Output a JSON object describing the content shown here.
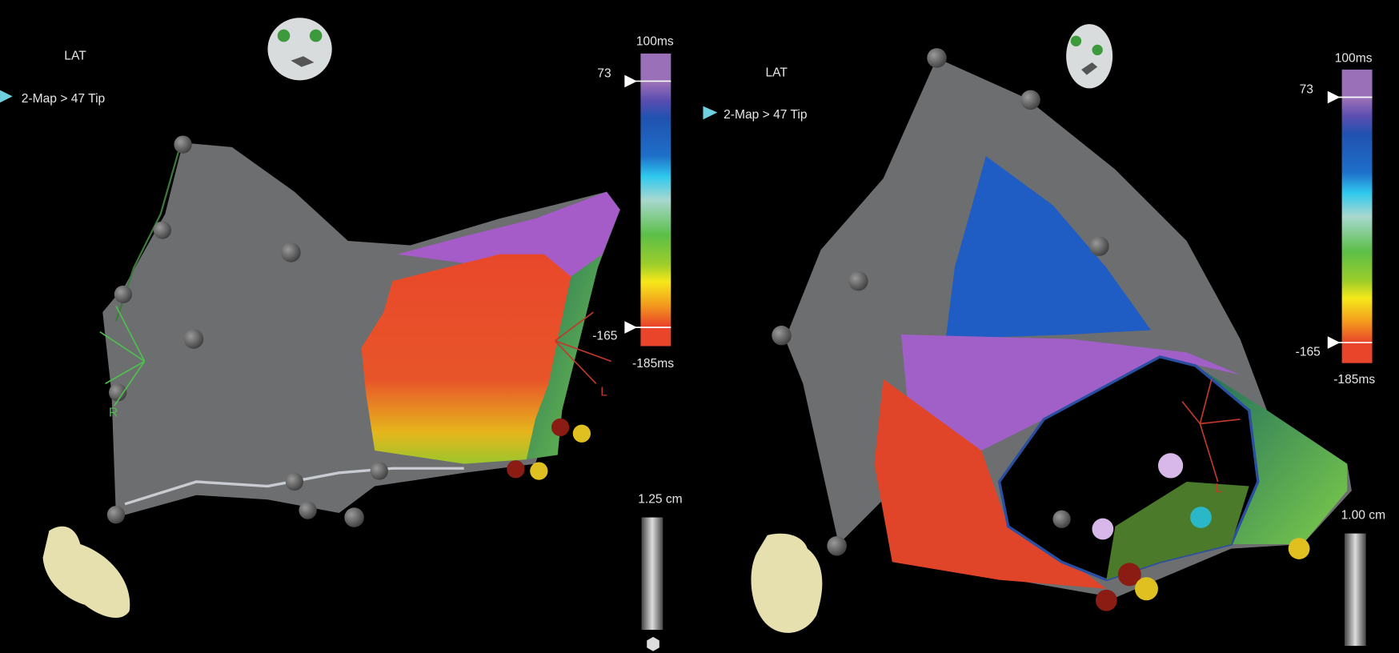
{
  "panels": [
    {
      "map_type": "LAT",
      "map_name": "2-Map > 47 Tip",
      "scale": {
        "top": "100ms",
        "upper": "73",
        "lower": "-165",
        "bottom": "-185ms"
      },
      "distance": "1.25 cm",
      "orientation": [
        "R",
        "L"
      ]
    },
    {
      "map_type": "LAT",
      "map_name": "2-Map > 47 Tip",
      "scale": {
        "top": "100ms",
        "upper": "73",
        "lower": "-165",
        "bottom": "-185ms"
      },
      "distance": "1.00 cm",
      "orientation": [
        "L"
      ]
    }
  ]
}
